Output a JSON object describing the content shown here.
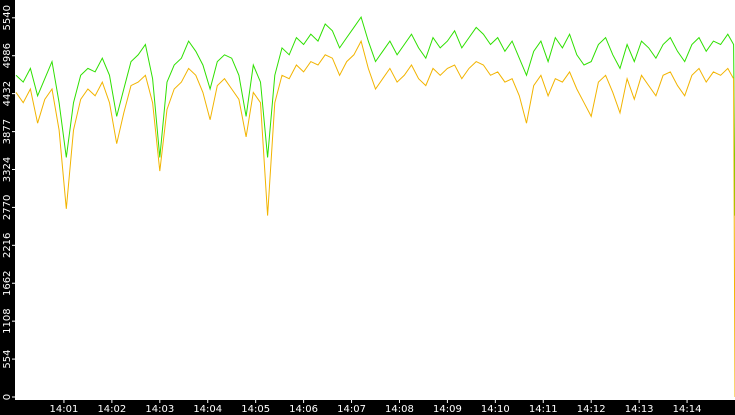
{
  "chart_data": {
    "type": "line",
    "x": [
      0,
      0.15,
      0.3,
      0.45,
      0.6,
      0.75,
      0.9,
      1.05,
      1.2,
      1.35,
      1.5,
      1.65,
      1.8,
      1.95,
      2.1,
      2.25,
      2.4,
      2.55,
      2.7,
      2.85,
      3,
      3.15,
      3.3,
      3.45,
      3.6,
      3.75,
      3.9,
      4.05,
      4.2,
      4.35,
      4.5,
      4.65,
      4.8,
      4.95,
      5.1,
      5.25,
      5.4,
      5.55,
      5.7,
      5.85,
      6,
      6.15,
      6.3,
      6.45,
      6.6,
      6.75,
      6.9,
      7.05,
      7.2,
      7.35,
      7.5,
      7.65,
      7.8,
      7.95,
      8.1,
      8.25,
      8.4,
      8.55,
      8.7,
      8.85,
      9,
      9.15,
      9.3,
      9.45,
      9.6,
      9.75,
      9.9,
      10.05,
      10.2,
      10.35,
      10.5,
      10.65,
      10.8,
      10.95,
      11.1,
      11.25,
      11.4,
      11.55,
      11.7,
      11.85,
      12,
      12.15,
      12.3,
      12.45,
      12.6,
      12.75,
      12.9,
      13.05,
      13.2,
      13.35,
      13.5,
      13.65,
      13.8,
      13.95,
      14.1,
      14.25,
      14.4,
      14.55,
      14.7,
      14.85,
      14.97,
      15
    ],
    "series": [
      {
        "color": "#2ee000",
        "values": [
          4700,
          4600,
          4800,
          4400,
          4650,
          4900,
          4300,
          3500,
          4300,
          4700,
          4800,
          4750,
          4950,
          4700,
          4100,
          4500,
          4900,
          5000,
          5150,
          4650,
          3500,
          4600,
          4850,
          4950,
          5200,
          5050,
          4850,
          4500,
          4900,
          5000,
          4950,
          4700,
          4100,
          4850,
          4600,
          3500,
          4700,
          5100,
          5000,
          5250,
          5150,
          5300,
          5200,
          5450,
          5350,
          5100,
          5250,
          5400,
          5550,
          5200,
          4900,
          5050,
          5200,
          5000,
          5150,
          5300,
          5100,
          4950,
          5250,
          5100,
          5200,
          5350,
          5100,
          5250,
          5400,
          5300,
          5150,
          5250,
          5050,
          5200,
          4950,
          4700,
          5050,
          5200,
          4900,
          5250,
          5100,
          5300,
          5000,
          4850,
          4900,
          5150,
          5250,
          5000,
          4800,
          5150,
          4900,
          5200,
          5100,
          4950,
          5150,
          5250,
          5050,
          4900,
          5150,
          5250,
          5050,
          5200,
          5150,
          5300,
          5150,
          2650
        ]
      },
      {
        "color": "#f2b400",
        "values": [
          4450,
          4300,
          4500,
          4000,
          4350,
          4500,
          3900,
          2750,
          3900,
          4350,
          4500,
          4400,
          4600,
          4300,
          3700,
          4150,
          4550,
          4600,
          4700,
          4300,
          3300,
          4200,
          4500,
          4600,
          4800,
          4700,
          4450,
          4050,
          4550,
          4650,
          4500,
          4350,
          3800,
          4450,
          4300,
          2650,
          4300,
          4700,
          4650,
          4850,
          4750,
          4900,
          4850,
          5000,
          4950,
          4700,
          4900,
          5000,
          5200,
          4800,
          4500,
          4650,
          4800,
          4600,
          4700,
          4850,
          4650,
          4550,
          4800,
          4700,
          4800,
          4850,
          4650,
          4800,
          4900,
          4850,
          4700,
          4750,
          4600,
          4650,
          4400,
          4000,
          4550,
          4700,
          4400,
          4650,
          4600,
          4750,
          4500,
          4300,
          4100,
          4600,
          4700,
          4450,
          4150,
          4650,
          4350,
          4700,
          4550,
          4400,
          4700,
          4750,
          4550,
          4400,
          4700,
          4800,
          4600,
          4750,
          4700,
          4800,
          4650,
          0
        ]
      }
    ],
    "xlim": [
      0,
      15
    ],
    "xticks": [
      {
        "value": 1,
        "label": "14:01"
      },
      {
        "value": 2,
        "label": "14:02"
      },
      {
        "value": 3,
        "label": "14:03"
      },
      {
        "value": 4,
        "label": "14:04"
      },
      {
        "value": 5,
        "label": "14:05"
      },
      {
        "value": 6,
        "label": "14:06"
      },
      {
        "value": 7,
        "label": "14:07"
      },
      {
        "value": 8,
        "label": "14:08"
      },
      {
        "value": 9,
        "label": "14:09"
      },
      {
        "value": 10,
        "label": "14:10"
      },
      {
        "value": 11,
        "label": "14:11"
      },
      {
        "value": 12,
        "label": "14:12"
      },
      {
        "value": 13,
        "label": "14:13"
      },
      {
        "value": 14,
        "label": "14:14"
      }
    ],
    "ylim": [
      0,
      5800
    ],
    "yticks": [
      0,
      554,
      1108,
      1662,
      2216,
      2770,
      3324,
      3877,
      4432,
      4986,
      5540
    ]
  }
}
